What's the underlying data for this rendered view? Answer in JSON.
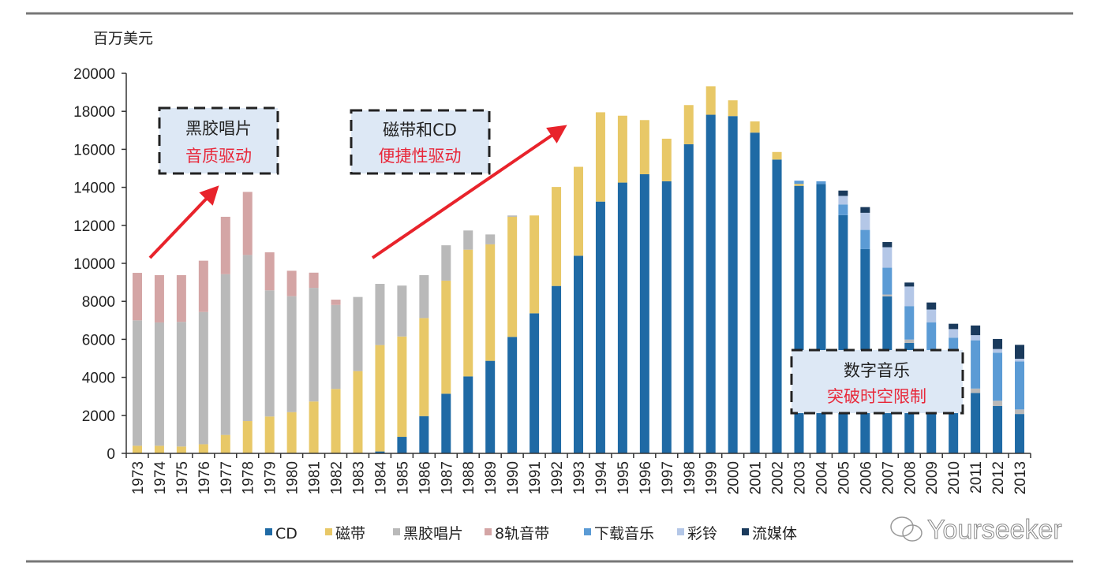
{
  "chart_data": {
    "type": "bar",
    "stacked": true,
    "ylabel": "百万美元",
    "ylim": [
      0,
      20000
    ],
    "yticks": [
      0,
      2000,
      4000,
      6000,
      8000,
      10000,
      12000,
      14000,
      16000,
      18000,
      20000
    ],
    "grid": false,
    "legend_position": "bottom",
    "categories": [
      "1973",
      "1974",
      "1975",
      "1976",
      "1977",
      "1978",
      "1979",
      "1980",
      "1981",
      "1982",
      "1983",
      "1984",
      "1985",
      "1986",
      "1987",
      "1988",
      "1989",
      "1990",
      "1991",
      "1992",
      "1993",
      "1994",
      "1995",
      "1996",
      "1997",
      "1998",
      "1999",
      "2000",
      "2001",
      "2002",
      "2003",
      "2004",
      "2005",
      "2006",
      "2007",
      "2008",
      "2009",
      "2010",
      "2011",
      "2012",
      "2013"
    ],
    "series": [
      {
        "name": "CD",
        "color": "#1f6aa5",
        "values": [
          0,
          0,
          0,
          0,
          0,
          0,
          0,
          0,
          0,
          0,
          0,
          100,
          870,
          1960,
          3140,
          4050,
          4870,
          6130,
          7370,
          8810,
          10400,
          13250,
          14250,
          14690,
          14320,
          16270,
          17820,
          17750,
          16880,
          15460,
          14080,
          14180,
          12540,
          10750,
          8260,
          5810,
          4300,
          3400,
          3180,
          2490,
          2070
        ]
      },
      {
        "name": "磁带",
        "color": "#e8c867",
        "values": [
          400,
          400,
          360,
          480,
          970,
          1700,
          1940,
          2170,
          2730,
          3390,
          4330,
          5600,
          5280,
          5160,
          5950,
          6670,
          6130,
          6320,
          5150,
          5210,
          4680,
          4700,
          3520,
          2850,
          2240,
          2060,
          1500,
          830,
          590,
          400,
          100,
          0,
          0,
          0,
          0,
          0,
          0,
          0,
          0,
          0,
          0
        ]
      },
      {
        "name": "黑胶唱片",
        "color": "#b9b9b9",
        "values": [
          6600,
          6490,
          6560,
          6960,
          8460,
          8740,
          6640,
          6100,
          5980,
          4420,
          3900,
          3220,
          2680,
          2260,
          1860,
          1010,
          520,
          70,
          0,
          0,
          0,
          0,
          0,
          0,
          0,
          0,
          0,
          0,
          0,
          0,
          0,
          0,
          0,
          0,
          100,
          180,
          100,
          100,
          230,
          280,
          240
        ]
      },
      {
        "name": "8轨音带",
        "color": "#d4a5a5",
        "values": [
          2500,
          2490,
          2460,
          2700,
          3020,
          3320,
          2000,
          1340,
          800,
          280,
          0,
          0,
          0,
          0,
          0,
          0,
          0,
          0,
          0,
          0,
          0,
          0,
          0,
          0,
          0,
          0,
          0,
          0,
          0,
          0,
          0,
          0,
          0,
          0,
          0,
          0,
          0,
          0,
          0,
          0,
          0
        ]
      },
      {
        "name": "下载音乐",
        "color": "#5b9bd5",
        "values": [
          0,
          0,
          0,
          0,
          0,
          0,
          0,
          0,
          0,
          0,
          0,
          0,
          0,
          0,
          0,
          0,
          0,
          0,
          0,
          0,
          0,
          0,
          0,
          0,
          0,
          0,
          0,
          0,
          0,
          0,
          170,
          140,
          560,
          1010,
          1410,
          1760,
          2500,
          2590,
          2540,
          2530,
          2530
        ]
      },
      {
        "name": "彩铃",
        "color": "#b4c7e7",
        "values": [
          0,
          0,
          0,
          0,
          0,
          0,
          0,
          0,
          0,
          0,
          0,
          0,
          0,
          0,
          0,
          0,
          0,
          0,
          0,
          0,
          0,
          0,
          0,
          0,
          0,
          0,
          0,
          0,
          0,
          0,
          0,
          0,
          450,
          900,
          1080,
          1030,
          670,
          450,
          270,
          190,
          140
        ]
      },
      {
        "name": "流媒体",
        "color": "#1a3a5c",
        "values": [
          0,
          0,
          0,
          0,
          0,
          0,
          0,
          0,
          0,
          0,
          0,
          0,
          0,
          0,
          0,
          0,
          0,
          0,
          0,
          0,
          0,
          0,
          0,
          0,
          0,
          0,
          0,
          0,
          0,
          0,
          0,
          0,
          280,
          300,
          270,
          210,
          370,
          280,
          510,
          530,
          730
        ]
      }
    ],
    "annotations": [
      {
        "line1": "黑胶唱片",
        "line2": "音质驱动"
      },
      {
        "line1": "磁带和CD",
        "line2": "便捷性驱动"
      },
      {
        "line1": "数字音乐",
        "line2": "突破时空限制"
      }
    ],
    "arrow_color": "#e8232b"
  },
  "watermark": "Yourseeker"
}
